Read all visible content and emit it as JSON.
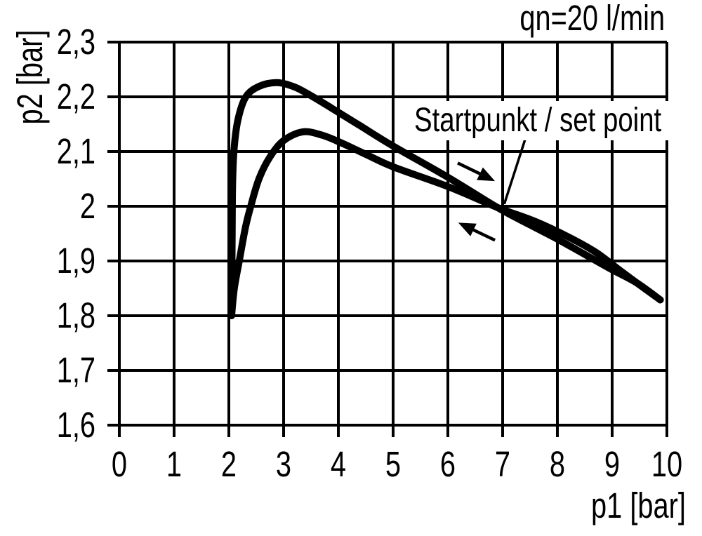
{
  "colors": {
    "line": "#000000",
    "grid": "#000000",
    "background": "#ffffff",
    "text": "#000000"
  },
  "chart_data": {
    "type": "line",
    "title": "",
    "flow_label": "qn=20 l/min",
    "xlabel": "p1 [bar]",
    "ylabel": "p2 [bar]",
    "xlim": [
      0,
      10
    ],
    "ylim": [
      1.6,
      2.3
    ],
    "grid": true,
    "legend": "none",
    "x_ticks": {
      "values": [
        0,
        1,
        2,
        3,
        4,
        5,
        6,
        7,
        8,
        9,
        10
      ],
      "labels": [
        "0",
        "1",
        "2",
        "3",
        "4",
        "5",
        "6",
        "7",
        "8",
        "9",
        "10"
      ]
    },
    "y_ticks": {
      "values": [
        2.3,
        2.2,
        2.1,
        2.0,
        1.9,
        1.8,
        1.7,
        1.6
      ],
      "labels": [
        "2,3",
        "2,2",
        "2,1",
        "2",
        "1,9",
        "1,8",
        "1,7",
        "1,6"
      ]
    },
    "series": [
      {
        "name": "forward-stroke-outer-curve",
        "points": [
          [
            2.05,
            1.8
          ],
          [
            2.06,
            1.95
          ],
          [
            2.07,
            2.05
          ],
          [
            2.1,
            2.11
          ],
          [
            2.17,
            2.16
          ],
          [
            2.31,
            2.2
          ],
          [
            2.55,
            2.219
          ],
          [
            2.88,
            2.226
          ],
          [
            3.2,
            2.218
          ],
          [
            3.5,
            2.202
          ],
          [
            3.9,
            2.178
          ],
          [
            4.4,
            2.147
          ],
          [
            5.0,
            2.11
          ],
          [
            6.0,
            2.053
          ],
          [
            6.9,
            1.998
          ],
          [
            7.5,
            1.966
          ],
          [
            8.0,
            1.94
          ],
          [
            8.5,
            1.912
          ],
          [
            9.0,
            1.884
          ],
          [
            9.45,
            1.86
          ],
          [
            9.88,
            1.829
          ]
        ]
      },
      {
        "name": "return-stroke-inner-curve",
        "points": [
          [
            2.05,
            1.8
          ],
          [
            2.1,
            1.85
          ],
          [
            2.19,
            1.9
          ],
          [
            2.3,
            1.96
          ],
          [
            2.4,
            2.0
          ],
          [
            2.55,
            2.05
          ],
          [
            2.75,
            2.09
          ],
          [
            3.0,
            2.12
          ],
          [
            3.35,
            2.136
          ],
          [
            3.7,
            2.13
          ],
          [
            4.05,
            2.116
          ],
          [
            4.5,
            2.095
          ],
          [
            5.0,
            2.072
          ],
          [
            6.0,
            2.036
          ],
          [
            6.9,
            1.998
          ],
          [
            7.6,
            1.972
          ],
          [
            8.2,
            1.944
          ],
          [
            8.7,
            1.916
          ],
          [
            9.1,
            1.886
          ],
          [
            9.45,
            1.86
          ],
          [
            9.88,
            1.829
          ]
        ]
      }
    ],
    "annotations": {
      "set_point": {
        "label": "Startpunkt / set point",
        "point": [
          7.0,
          2.0
        ],
        "leader": [
          [
            7.41,
            2.122
          ],
          [
            7.03,
            2.004
          ]
        ]
      },
      "direction_arrows": [
        {
          "name": "forward-direction-arrow",
          "from": [
            6.18,
            2.079
          ],
          "to": [
            6.86,
            2.046
          ]
        },
        {
          "name": "return-direction-arrow",
          "from": [
            6.86,
            1.938
          ],
          "to": [
            6.19,
            1.97
          ]
        }
      ]
    }
  }
}
